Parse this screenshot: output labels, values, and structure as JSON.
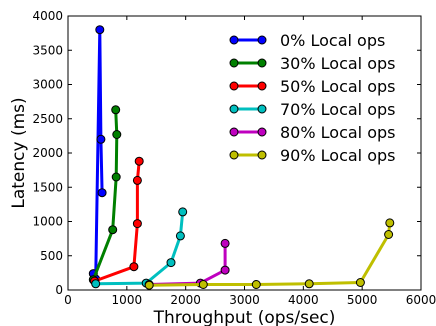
{
  "chart_data": {
    "type": "line",
    "title": "",
    "xlabel": "Throughput (ops/sec)",
    "ylabel": "Latency (ms)",
    "xlim": [
      0,
      6000
    ],
    "ylim": [
      0,
      4000
    ],
    "x_ticks": [
      0,
      1000,
      2000,
      3000,
      4000,
      5000,
      6000
    ],
    "y_ticks": [
      0,
      500,
      1000,
      1500,
      2000,
      2500,
      3000,
      3500,
      4000
    ],
    "grid": false,
    "legend_position": "top-right",
    "series": [
      {
        "name": "0%   Local ops",
        "color": "#0000ff",
        "points": [
          [
            430,
            240
          ],
          [
            470,
            160
          ],
          [
            540,
            3800
          ],
          [
            560,
            2200
          ],
          [
            580,
            1420
          ]
        ]
      },
      {
        "name": "30% Local ops",
        "color": "#008000",
        "points": [
          [
            430,
            150
          ],
          [
            760,
            880
          ],
          [
            820,
            1650
          ],
          [
            830,
            2270
          ],
          [
            810,
            2630
          ]
        ]
      },
      {
        "name": "50% Local ops",
        "color": "#ff0000",
        "points": [
          [
            450,
            130
          ],
          [
            1120,
            340
          ],
          [
            1180,
            970
          ],
          [
            1180,
            1600
          ],
          [
            1210,
            1880
          ]
        ]
      },
      {
        "name": "70% Local ops",
        "color": "#00bfbf",
        "points": [
          [
            470,
            90
          ],
          [
            1330,
            100
          ],
          [
            1750,
            400
          ],
          [
            1910,
            790
          ],
          [
            1950,
            1140
          ]
        ]
      },
      {
        "name": "80% Local ops",
        "color": "#bf00bf",
        "points": [
          [
            1380,
            80
          ],
          [
            2250,
            100
          ],
          [
            2670,
            290
          ],
          [
            2670,
            680
          ]
        ]
      },
      {
        "name": "90% Local ops",
        "color": "#bfbf00",
        "points": [
          [
            1380,
            70
          ],
          [
            2300,
            80
          ],
          [
            3200,
            80
          ],
          [
            4100,
            90
          ],
          [
            4970,
            110
          ],
          [
            5450,
            810
          ],
          [
            5470,
            980
          ]
        ]
      }
    ]
  }
}
